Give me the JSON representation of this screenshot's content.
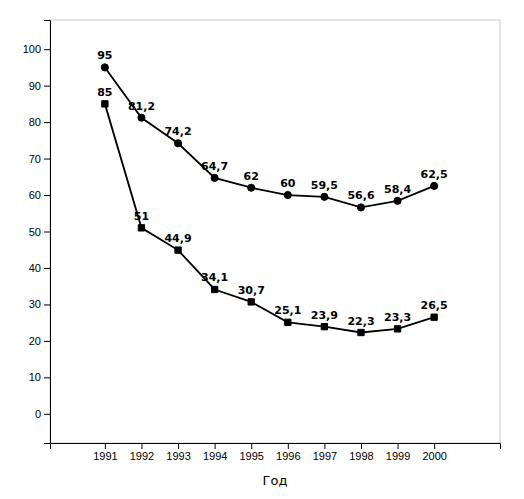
{
  "chart_data": {
    "type": "line",
    "x_label": "Год",
    "x": [
      1991,
      1992,
      1993,
      1994,
      1995,
      1996,
      1997,
      1998,
      1999,
      2000
    ],
    "series": [
      {
        "color": "#000000",
        "marker": "circle",
        "values": [
          95,
          81.2,
          74.2,
          64.7,
          62,
          60,
          59.5,
          56.6,
          58.4,
          62.5
        ],
        "value_labels": [
          "95",
          "81,2",
          "74,2",
          "64,7",
          "62",
          "60",
          "59,5",
          "56,6",
          "58,4",
          "62,5"
        ]
      },
      {
        "color": "#000000",
        "marker": "square",
        "values": [
          85,
          51,
          44.9,
          34.1,
          30.7,
          25.1,
          23.9,
          22.3,
          23.3,
          26.5
        ],
        "value_labels": [
          "85",
          "51",
          "44,9",
          "34,1",
          "30,7",
          "25,1",
          "23,9",
          "22,3",
          "23,3",
          "26,5"
        ]
      }
    ],
    "xlim": [
      1989.5,
      2001.8
    ],
    "ylim": [
      -8,
      108
    ],
    "xticks": [
      1991,
      1992,
      1993,
      1994,
      1995,
      1996,
      1997,
      1998,
      1999,
      2000
    ],
    "yticks": [
      0,
      10,
      20,
      30,
      40,
      50,
      60,
      70,
      80,
      90,
      100
    ],
    "grid": false,
    "data_labels": true
  }
}
